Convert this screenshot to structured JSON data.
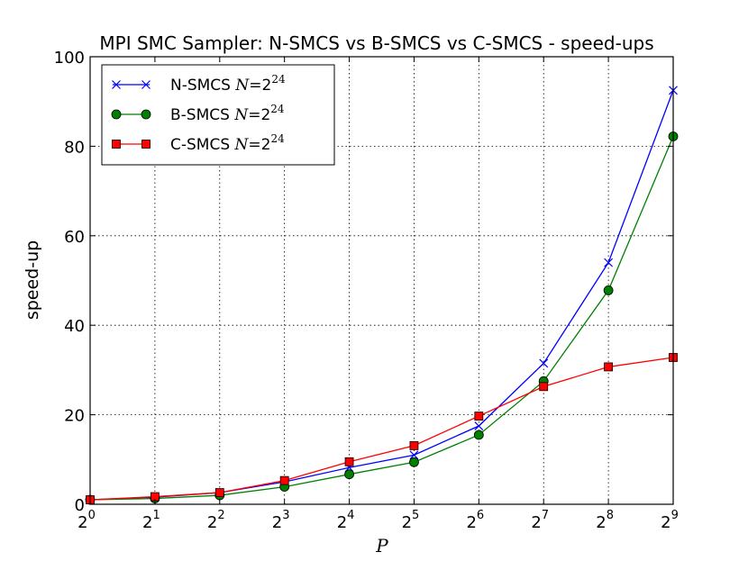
{
  "chart_data": {
    "type": "line",
    "title": "MPI SMC Sampler: N-SMCS vs B-SMCS vs C-SMCS - speed-ups",
    "xlabel": "P",
    "ylabel": "speed-up",
    "x_scale": "log2",
    "x": [
      1,
      2,
      4,
      8,
      16,
      32,
      64,
      128,
      256,
      512
    ],
    "x_tick_labels": [
      {
        "base": "2",
        "exp": "0"
      },
      {
        "base": "2",
        "exp": "1"
      },
      {
        "base": "2",
        "exp": "2"
      },
      {
        "base": "2",
        "exp": "3"
      },
      {
        "base": "2",
        "exp": "4"
      },
      {
        "base": "2",
        "exp": "5"
      },
      {
        "base": "2",
        "exp": "6"
      },
      {
        "base": "2",
        "exp": "7"
      },
      {
        "base": "2",
        "exp": "8"
      },
      {
        "base": "2",
        "exp": "9"
      }
    ],
    "xlim": [
      1,
      512
    ],
    "ylim": [
      0,
      100
    ],
    "y_ticks": [
      "0",
      "20",
      "40",
      "60",
      "80",
      "100"
    ],
    "grid": true,
    "legend_position": "top-left",
    "series": [
      {
        "name": "N-SMCS",
        "name_math": {
          "var": "N",
          "eq": "=",
          "base": "2",
          "exp": "24"
        },
        "color": "#0000ff",
        "marker": "x",
        "values": [
          1.0,
          1.6,
          2.6,
          5.0,
          8.2,
          11.0,
          17.5,
          31.5,
          54.0,
          92.5
        ]
      },
      {
        "name": "B-SMCS",
        "name_math": {
          "var": "N",
          "eq": "=",
          "base": "2",
          "exp": "24"
        },
        "color": "#008000",
        "marker": "circle",
        "values": [
          1.0,
          1.3,
          2.0,
          3.9,
          6.7,
          9.4,
          15.5,
          27.5,
          47.8,
          82.2
        ]
      },
      {
        "name": "C-SMCS",
        "name_math": {
          "var": "N",
          "eq": "=",
          "base": "2",
          "exp": "24"
        },
        "color": "#ff0000",
        "marker": "square",
        "values": [
          1.0,
          1.7,
          2.6,
          5.3,
          9.5,
          13.1,
          19.7,
          26.3,
          30.7,
          32.8
        ]
      }
    ]
  }
}
